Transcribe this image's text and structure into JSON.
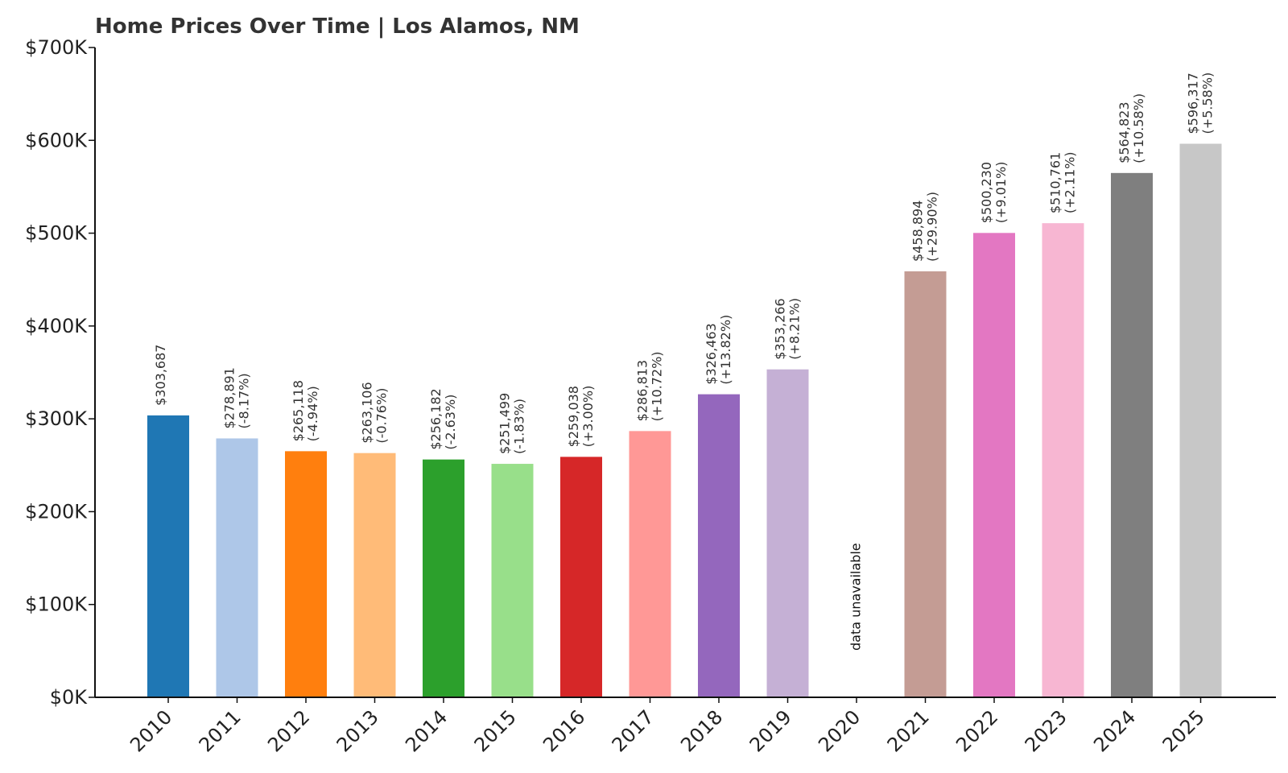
{
  "chart_data": {
    "type": "bar",
    "title": "Home Prices Over Time | Los Alamos, NM",
    "xlabel": "",
    "ylabel": "",
    "ylim": [
      0,
      700000
    ],
    "yticks": [
      0,
      100000,
      200000,
      300000,
      400000,
      500000,
      600000,
      700000
    ],
    "ytick_labels": [
      "$0K",
      "$100K",
      "$200K",
      "$300K",
      "$400K",
      "$500K",
      "$600K",
      "$700K"
    ],
    "grid": false,
    "categories": [
      "2010",
      "2011",
      "2012",
      "2013",
      "2014",
      "2015",
      "2016",
      "2017",
      "2018",
      "2019",
      "2020",
      "2021",
      "2022",
      "2023",
      "2024",
      "2025"
    ],
    "values": [
      303687,
      278891,
      265118,
      263106,
      256182,
      251499,
      259038,
      286813,
      326463,
      353266,
      null,
      458894,
      500230,
      510761,
      564823,
      596317
    ],
    "value_labels": [
      "$303,687",
      "$278,891",
      "$265,118",
      "$263,106",
      "$256,182",
      "$251,499",
      "$259,038",
      "$286,813",
      "$326,463",
      "$353,266",
      "",
      "$458,894",
      "$500,230",
      "$510,761",
      "$564,823",
      "$596,317"
    ],
    "change_labels": [
      "",
      "(-8.17%)",
      "(-4.94%)",
      "(-0.76%)",
      "(-2.63%)",
      "(-1.83%)",
      "(+3.00%)",
      "(+10.72%)",
      "(+13.82%)",
      "(+8.21%)",
      "",
      "(+29.90%)",
      "(+9.01%)",
      "(+2.11%)",
      "(+10.58%)",
      "(+5.58%)"
    ],
    "colors": [
      "#1f77b4",
      "#aec7e8",
      "#ff7f0e",
      "#ffbb78",
      "#2ca02c",
      "#98df8a",
      "#d62728",
      "#ff9896",
      "#9467bd",
      "#c5b0d5",
      "#8c564b",
      "#c49c94",
      "#e377c2",
      "#f7b6d2",
      "#7f7f7f",
      "#c7c7c7"
    ],
    "missing_label": "data unavailable"
  }
}
